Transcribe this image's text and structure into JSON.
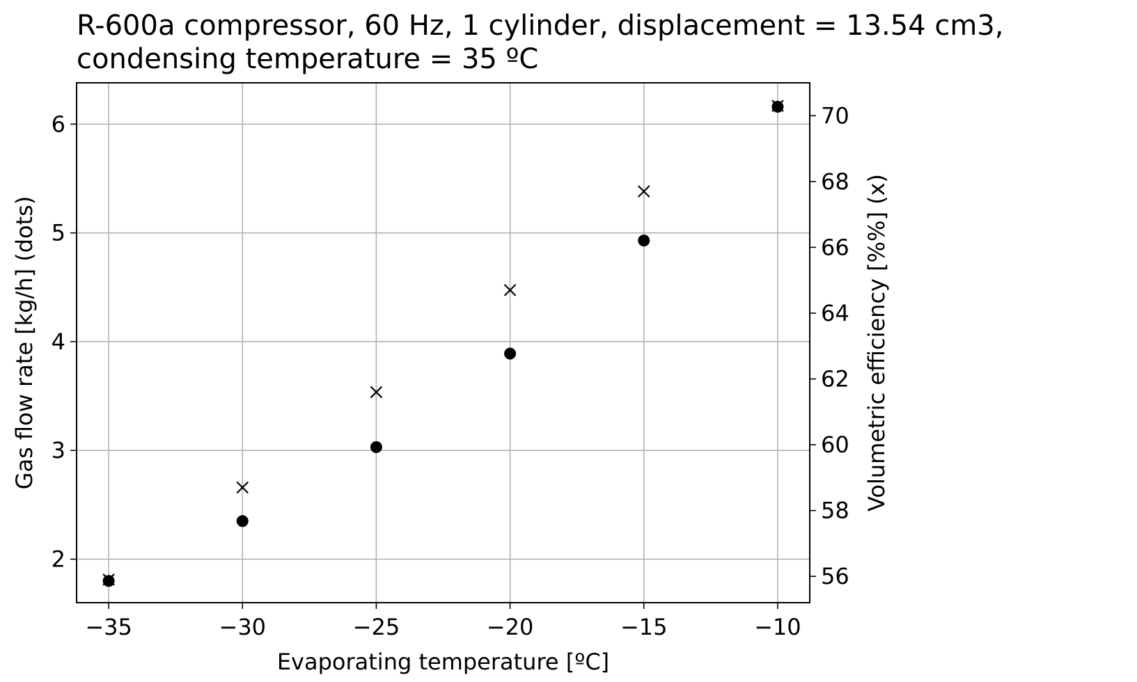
{
  "chart_data": {
    "type": "scatter",
    "title_lines": [
      "R-600a compressor, 60 Hz, 1 cylinder, displacement = 13.54 cm3,",
      "condensing temperature = 35 ºC"
    ],
    "xlabel": "Evaporating temperature [ºC]",
    "ylabel": "Gas flow rate [kg/h] (dots)",
    "y2label": "Volumetric efficiency [%%] (x)",
    "xlim": [
      -36.2,
      -8.8
    ],
    "ylim": [
      1.6,
      6.38
    ],
    "y2lim": [
      55.2,
      71.0
    ],
    "x_ticks": [
      -35,
      -30,
      -25,
      -20,
      -15,
      -10
    ],
    "x_tick_labels": [
      "−35",
      "−30",
      "−25",
      "−20",
      "−15",
      "−10"
    ],
    "y_ticks": [
      2,
      3,
      4,
      5,
      6
    ],
    "y_tick_labels": [
      "2",
      "3",
      "4",
      "5",
      "6"
    ],
    "y2_ticks": [
      56,
      58,
      60,
      62,
      64,
      66,
      68,
      70
    ],
    "y2_tick_labels": [
      "56",
      "58",
      "60",
      "62",
      "64",
      "66",
      "68",
      "70"
    ],
    "grid": true,
    "series": [
      {
        "marker": "dot",
        "axis": "left",
        "color": "#000000",
        "x": [
          -35,
          -30,
          -25,
          -20,
          -15,
          -10
        ],
        "y": [
          1.8,
          2.35,
          3.03,
          3.89,
          4.93,
          6.16
        ]
      },
      {
        "marker": "x",
        "axis": "right",
        "color": "#000000",
        "x": [
          -35,
          -30,
          -25,
          -20,
          -15,
          -10
        ],
        "y": [
          55.9,
          58.7,
          61.6,
          64.7,
          67.7,
          70.3
        ]
      }
    ]
  }
}
